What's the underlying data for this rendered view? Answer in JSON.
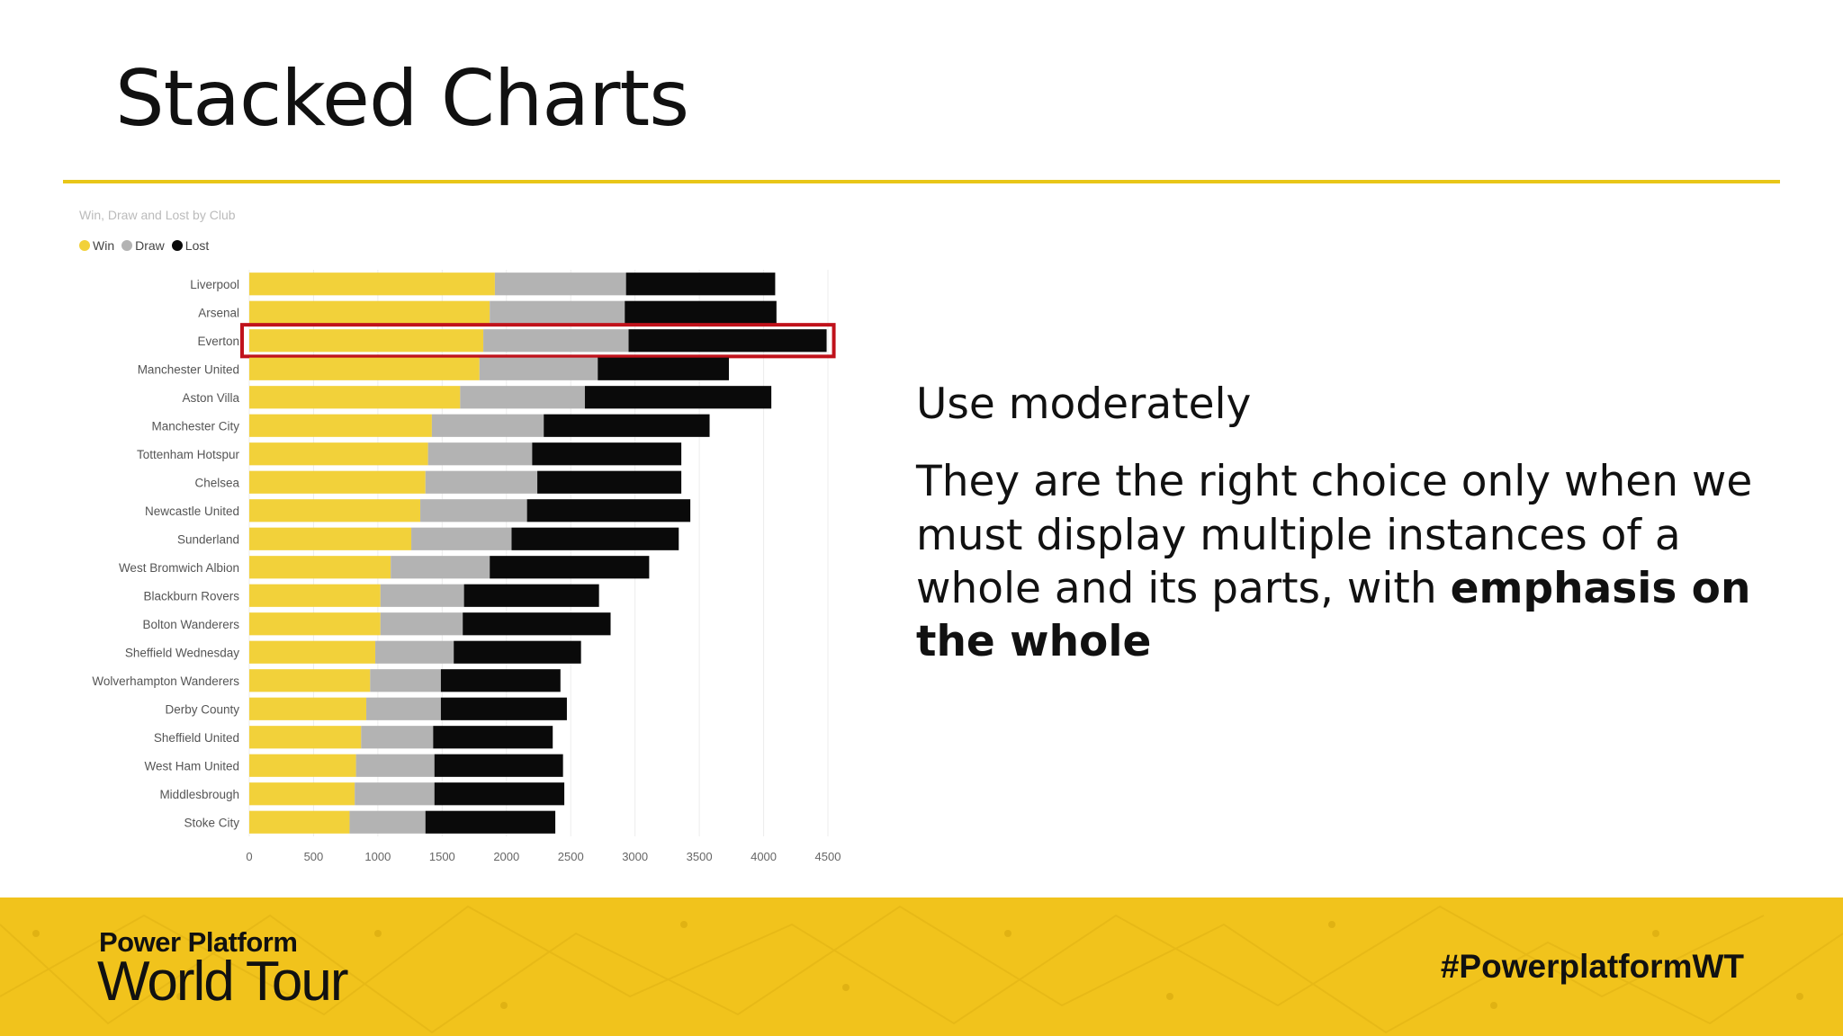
{
  "slide": {
    "title": "Stacked Charts",
    "points": {
      "p1": "Use moderately",
      "p2_text": "They are the right choice only when we must display multiple instances of a whole and its parts, with ",
      "p2_bold": "emphasis on the whole"
    }
  },
  "footer": {
    "brand_line1": "Power Platform",
    "brand_line2": "World Tour",
    "hashtag": "#PowerplatformWT"
  },
  "colors": {
    "accent": "#e8c618",
    "win": "#f2d13a",
    "draw": "#b3b3b3",
    "lost": "#0a0a0a",
    "highlight": "#c0121b",
    "footer_bg": "#f1c31c"
  },
  "chart_data": {
    "type": "bar",
    "orientation": "horizontal",
    "stacked": true,
    "title": "Win, Draw and Lost by Club",
    "legend_position": "top-left",
    "categories": [
      "Liverpool",
      "Arsenal",
      "Everton",
      "Manchester United",
      "Aston Villa",
      "Manchester City",
      "Tottenham Hotspur",
      "Chelsea",
      "Newcastle United",
      "Sunderland",
      "West Bromwich Albion",
      "Blackburn Rovers",
      "Bolton Wanderers",
      "Sheffield Wednesday",
      "Wolverhampton Wanderers",
      "Derby County",
      "Sheffield United",
      "West Ham United",
      "Middlesbrough",
      "Stoke City"
    ],
    "series": [
      {
        "name": "Win",
        "values": [
          1910,
          1870,
          1820,
          1790,
          1640,
          1420,
          1390,
          1370,
          1330,
          1260,
          1100,
          1020,
          1020,
          980,
          940,
          910,
          870,
          830,
          820,
          780
        ]
      },
      {
        "name": "Draw",
        "values": [
          1020,
          1050,
          1130,
          920,
          970,
          870,
          810,
          870,
          830,
          780,
          770,
          650,
          640,
          610,
          550,
          580,
          560,
          610,
          620,
          590
        ]
      },
      {
        "name": "Lost",
        "values": [
          1160,
          1180,
          1540,
          1020,
          1450,
          1290,
          1160,
          1120,
          1270,
          1300,
          1240,
          1050,
          1150,
          990,
          930,
          980,
          930,
          1000,
          1010,
          1010
        ]
      }
    ],
    "highlighted_category": "Everton",
    "xlim": [
      0,
      4500
    ],
    "xticks": [
      0,
      500,
      1000,
      1500,
      2000,
      2500,
      3000,
      3500,
      4000,
      4500
    ],
    "grid": true
  }
}
